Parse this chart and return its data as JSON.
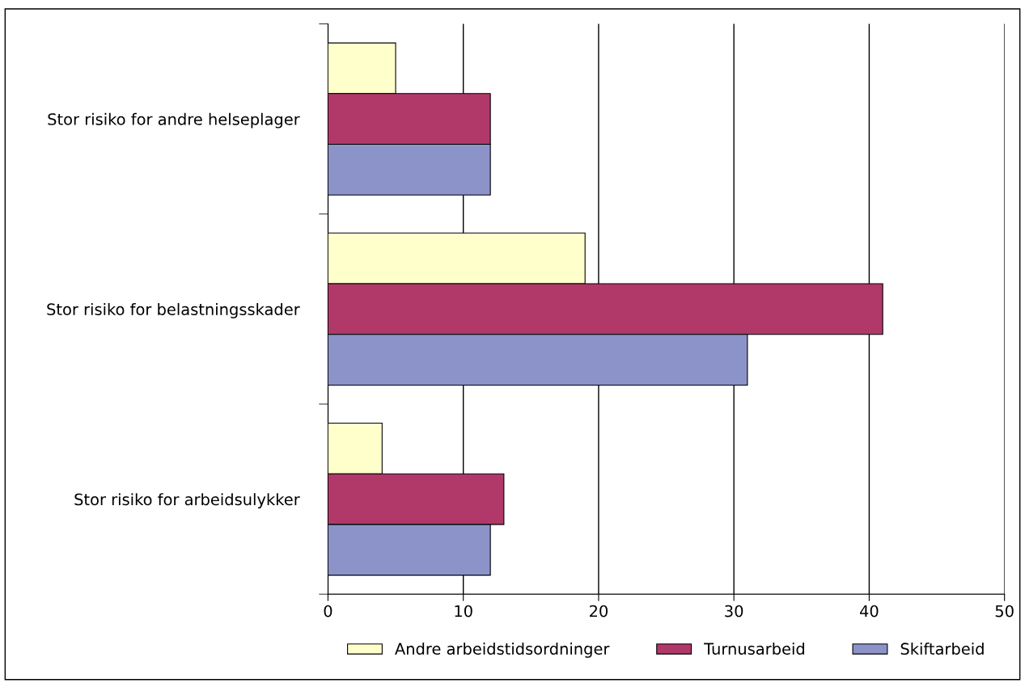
{
  "chart_data": {
    "type": "bar",
    "orientation": "horizontal",
    "categories": [
      "Stor risiko for andre helseplager",
      "Stor risiko for belastningsskader",
      "Stor risiko for arbeidsulykker"
    ],
    "series": [
      {
        "name": "Andre arbeidstidsordninger",
        "color": "#ffffcc",
        "values": [
          5,
          19,
          4
        ]
      },
      {
        "name": "Turnusarbeid",
        "color": "#b0396a",
        "values": [
          12,
          41,
          13
        ]
      },
      {
        "name": "Skiftarbeid",
        "color": "#8b93c9",
        "values": [
          12,
          31,
          12
        ]
      }
    ],
    "xlim": [
      0,
      50
    ],
    "xticks": [
      0,
      10,
      20,
      30,
      40,
      50
    ],
    "grid": "x",
    "legend": "bottom"
  }
}
